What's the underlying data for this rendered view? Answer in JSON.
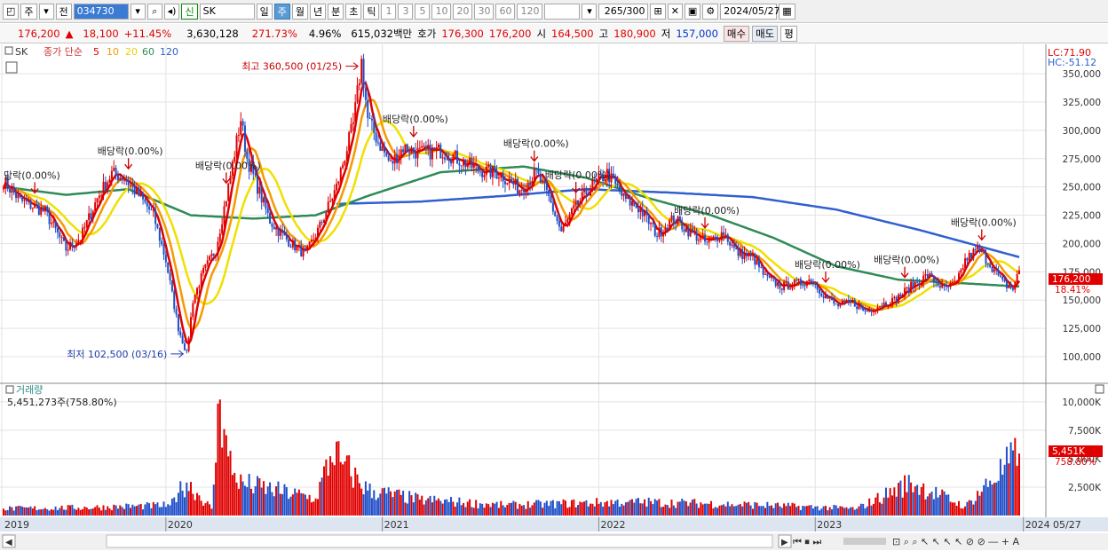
{
  "toolbar": {
    "tab1": "주",
    "tab2": "전",
    "code": "034730",
    "name": "SK",
    "periods": [
      "일",
      "주",
      "월",
      "년",
      "분",
      "초",
      "틱"
    ],
    "selected_period": "주",
    "counts": [
      "1",
      "3",
      "5",
      "10",
      "20",
      "30",
      "60",
      "120"
    ],
    "range": "265",
    "range_total": "/300",
    "date": "2024/05/27",
    "new_badge": "신"
  },
  "quote": {
    "price": "176,200",
    "arrow": "▲",
    "change": "18,100",
    "pct": "+11.45%",
    "volume": "3,630,128",
    "vol_ratio": "271.73%",
    "turnover": "4.96%",
    "amount": "615,032백만",
    "ask_label": "호가",
    "ask": "176,300",
    "bid": "176,200",
    "open_label": "시",
    "open": "164,500",
    "high_label": "고",
    "high": "180,900",
    "low_label": "저",
    "low": "157,000",
    "buy": "매수",
    "sell": "매도",
    "flat": "평"
  },
  "legend": {
    "name": "SK",
    "ma_label": "종가 단순",
    "periods": [
      "5",
      "10",
      "20",
      "60",
      "120"
    ],
    "colors": [
      "#e00000",
      "#f59a00",
      "#f0e000",
      "#2e8b57",
      "#2f5fd0"
    ]
  },
  "right_top": {
    "lc": "LC:71.90",
    "hc": "HC:-51.12"
  },
  "price_axis": {
    "label": "176,200",
    "pct": "18.41%"
  },
  "volume_axis": {
    "label": "5,451K",
    "pct": "758.80%"
  },
  "volume_title": "거래량",
  "volume_info": "5,451,273주(758.80%)",
  "annotations": {
    "high": "최고 360,500 (01/25)",
    "low": "최저 102,500 (03/16)",
    "dividend": "배당락(0.00%)",
    "dividend_cut": "당락(0.00%)"
  },
  "chart_data": {
    "type": "candlestick",
    "price_ticks": [
      100000,
      125000,
      150000,
      175000,
      200000,
      225000,
      250000,
      275000,
      300000,
      325000,
      350000
    ],
    "price_tick_labels": [
      "100,000",
      "125,000",
      "150,000",
      "175,000",
      "200,000",
      "225,000",
      "250,000",
      "275,000",
      "300,000",
      "325,000",
      "350,000"
    ],
    "ylim": [
      82000,
      372000
    ],
    "volume_ticks": [
      2500,
      5000,
      7500,
      10000
    ],
    "volume_tick_labels": [
      "2,500K",
      "5,000K",
      "7,500K",
      "10,000K"
    ],
    "vlim": [
      0,
      11000
    ],
    "x_labels": [
      "2019",
      "2020",
      "2021",
      "2022",
      "2023",
      "2024",
      "05/27"
    ],
    "close_series": [
      [
        0,
        255000
      ],
      [
        8,
        238000
      ],
      [
        20,
        228000
      ],
      [
        30,
        195000
      ],
      [
        37,
        205000
      ],
      [
        45,
        240000
      ],
      [
        52,
        262000
      ],
      [
        58,
        258000
      ],
      [
        66,
        240000
      ],
      [
        72,
        225000
      ],
      [
        78,
        185000
      ],
      [
        84,
        125000
      ],
      [
        88,
        102500
      ],
      [
        91,
        150000
      ],
      [
        96,
        175000
      ],
      [
        102,
        195000
      ],
      [
        108,
        250000
      ],
      [
        114,
        310000
      ],
      [
        117,
        275000
      ],
      [
        122,
        250000
      ],
      [
        128,
        220000
      ],
      [
        135,
        205000
      ],
      [
        145,
        190000
      ],
      [
        152,
        215000
      ],
      [
        160,
        250000
      ],
      [
        168,
        305000
      ],
      [
        172,
        360500
      ],
      [
        175,
        310000
      ],
      [
        180,
        290000
      ],
      [
        186,
        270000
      ],
      [
        192,
        285000
      ],
      [
        200,
        280000
      ],
      [
        210,
        282000
      ],
      [
        218,
        275000
      ],
      [
        228,
        265000
      ],
      [
        238,
        262000
      ],
      [
        248,
        248000
      ],
      [
        256,
        262000
      ],
      [
        262,
        240000
      ],
      [
        268,
        210000
      ],
      [
        274,
        230000
      ],
      [
        282,
        250000
      ],
      [
        290,
        262000
      ],
      [
        298,
        240000
      ],
      [
        306,
        230000
      ],
      [
        314,
        208000
      ],
      [
        322,
        222000
      ],
      [
        330,
        210000
      ],
      [
        338,
        200000
      ],
      [
        346,
        210000
      ],
      [
        352,
        192000
      ],
      [
        360,
        188000
      ],
      [
        366,
        170000
      ],
      [
        374,
        162000
      ],
      [
        382,
        165000
      ],
      [
        388,
        168000
      ],
      [
        394,
        155000
      ],
      [
        400,
        145000
      ],
      [
        408,
        148000
      ],
      [
        414,
        140000
      ],
      [
        420,
        145000
      ],
      [
        428,
        150000
      ],
      [
        436,
        162000
      ],
      [
        444,
        172000
      ],
      [
        452,
        160000
      ],
      [
        458,
        165000
      ],
      [
        462,
        185000
      ],
      [
        468,
        195000
      ],
      [
        474,
        182000
      ],
      [
        480,
        165000
      ],
      [
        485,
        160000
      ],
      [
        488,
        176200
      ]
    ],
    "ma120": [
      [
        160,
        235000
      ],
      [
        200,
        237000
      ],
      [
        240,
        242000
      ],
      [
        280,
        248000
      ],
      [
        320,
        245000
      ],
      [
        360,
        241000
      ],
      [
        400,
        230000
      ],
      [
        440,
        212000
      ],
      [
        470,
        197000
      ],
      [
        488,
        188000
      ]
    ],
    "ma60": [
      [
        0,
        250000
      ],
      [
        30,
        243000
      ],
      [
        60,
        248000
      ],
      [
        90,
        225000
      ],
      [
        120,
        222000
      ],
      [
        150,
        225000
      ],
      [
        175,
        242000
      ],
      [
        210,
        263000
      ],
      [
        250,
        268000
      ],
      [
        280,
        258000
      ],
      [
        310,
        240000
      ],
      [
        340,
        225000
      ],
      [
        370,
        205000
      ],
      [
        400,
        180000
      ],
      [
        430,
        168000
      ],
      [
        460,
        165000
      ],
      [
        488,
        162000
      ]
    ],
    "volume_k": [
      [
        0,
        600
      ],
      [
        40,
        700
      ],
      [
        80,
        900
      ],
      [
        84,
        2000
      ],
      [
        88,
        2900
      ],
      [
        100,
        600
      ],
      [
        104,
        10200
      ],
      [
        106,
        7600
      ],
      [
        108,
        5200
      ],
      [
        112,
        2900
      ],
      [
        150,
        1500
      ],
      [
        160,
        6500
      ],
      [
        162,
        4700
      ],
      [
        175,
        2200
      ],
      [
        200,
        1400
      ],
      [
        240,
        900
      ],
      [
        300,
        1200
      ],
      [
        350,
        1000
      ],
      [
        410,
        600
      ],
      [
        436,
        2900
      ],
      [
        462,
        800
      ],
      [
        488,
        5451
      ]
    ],
    "dividends_at": [
      15,
      60,
      107,
      197,
      255,
      275,
      337,
      395,
      433,
      470
    ]
  }
}
